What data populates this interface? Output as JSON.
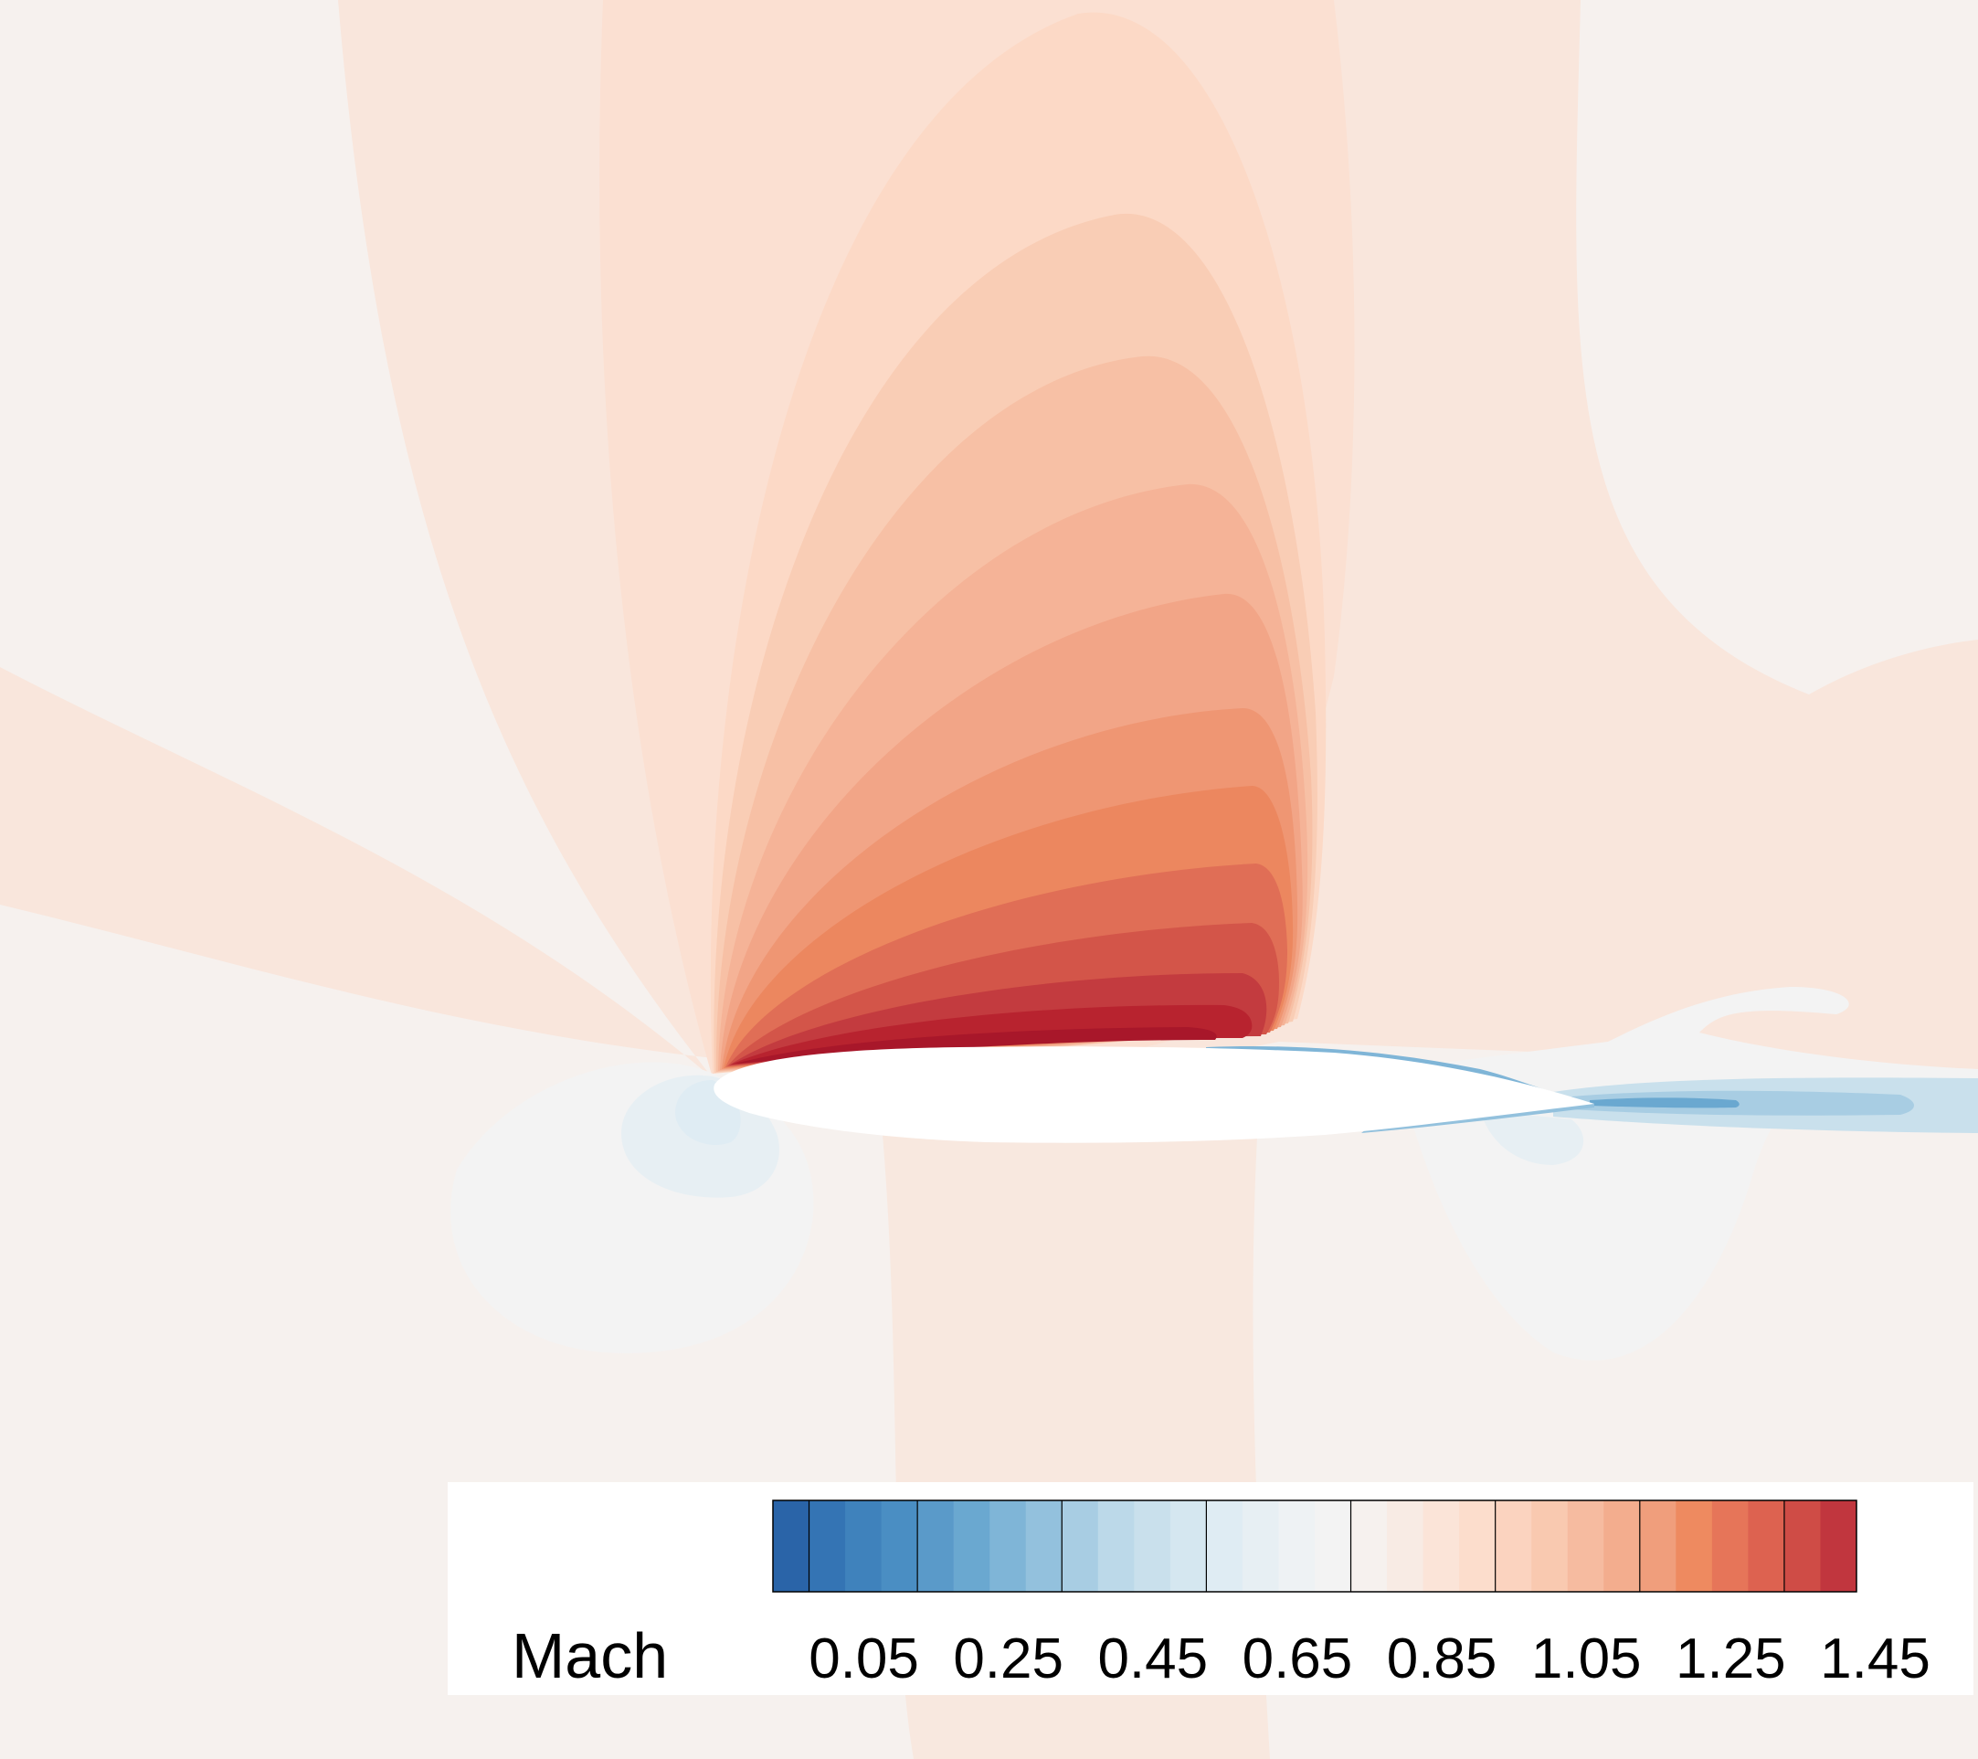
{
  "chart_data": {
    "type": "heatmap",
    "title": "",
    "colorbar": {
      "label": "Mach",
      "tick_labels": [
        "0.05",
        "0.25",
        "0.45",
        "0.65",
        "0.85",
        "1.05",
        "1.25",
        "1.45"
      ],
      "ticks": [
        0.05,
        0.25,
        0.45,
        0.65,
        0.85,
        1.05,
        1.25,
        1.45
      ],
      "range": [
        0.0,
        1.5
      ],
      "level_step": 0.05,
      "colors": [
        "#2a64a8",
        "#3474b4",
        "#3f82bc",
        "#4a8ec3",
        "#5a9ac9",
        "#6aa8d0",
        "#7fb5d7",
        "#93c1dd",
        "#a8cde3",
        "#bcd9e9",
        "#c9e0ec",
        "#d5e7f0",
        "#dfecf3",
        "#e7eff3",
        "#eef2f4",
        "#f3f3f3",
        "#f6f1ee",
        "#f8ebe4",
        "#fbe4d8",
        "#fcddcc",
        "#fbd3bf",
        "#f9c9b0",
        "#f6bba0",
        "#f3ad8e",
        "#f09e7c",
        "#ee8a60",
        "#e67559",
        "#dd6250",
        "#cf4c46",
        "#c1363e",
        "#ad1c2c"
      ]
    },
    "freestream_color": "#f6f1ee"
  }
}
